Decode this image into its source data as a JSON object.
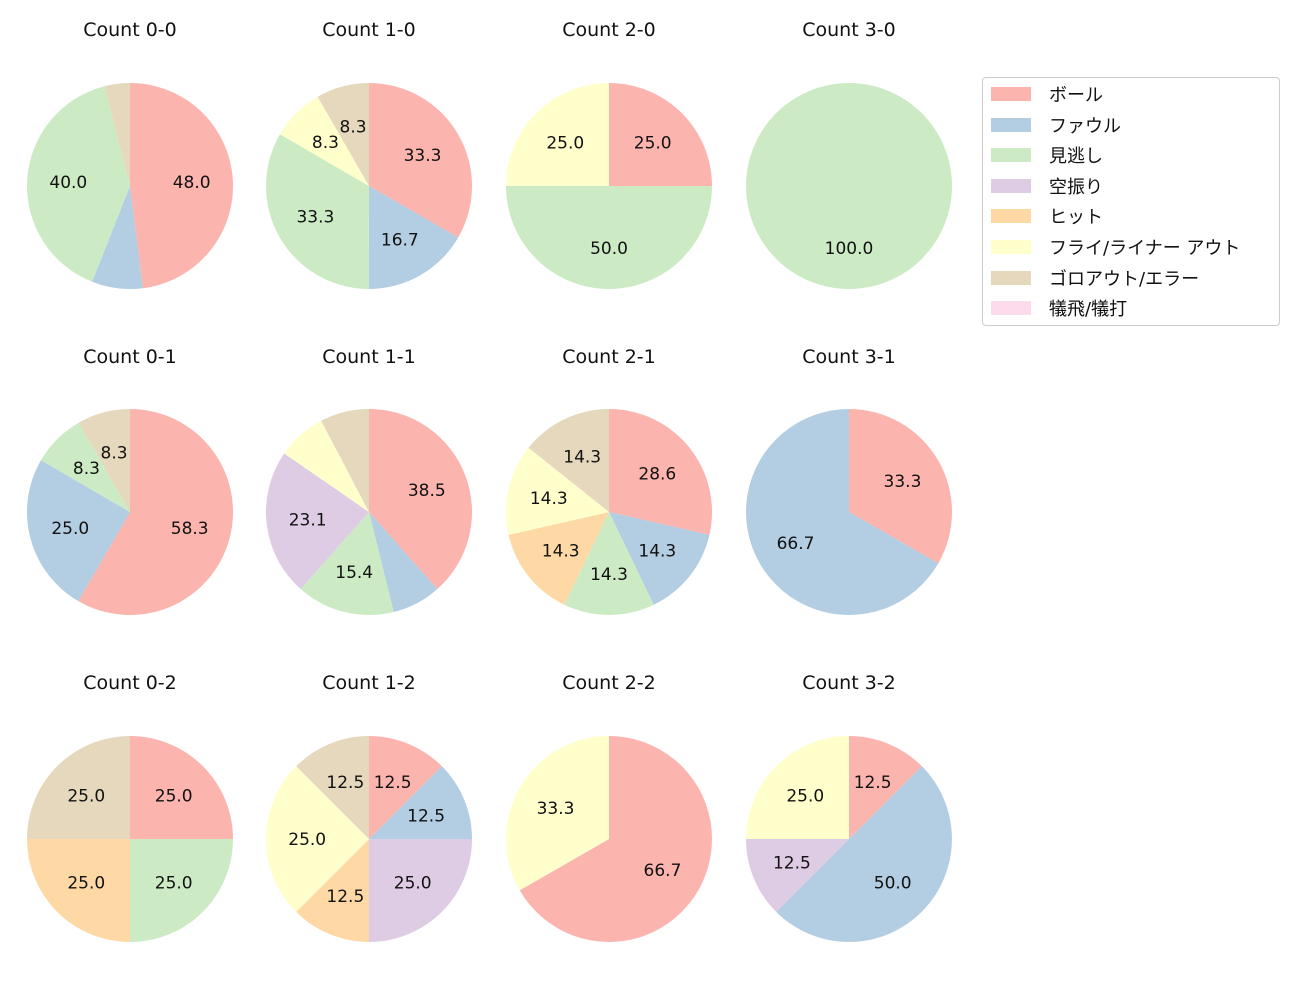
{
  "chart_data": {
    "type": "pie",
    "legend_position": "right",
    "legend": [
      "ボール",
      "ファウル",
      "見逃し",
      "空振り",
      "ヒット",
      "フライ/ライナー アウト",
      "ゴロアウト/エラー",
      "犠飛/犠打"
    ],
    "colors": [
      "#fbb4ae",
      "#b3cde3",
      "#ccebc5",
      "#decbe4",
      "#fed9a6",
      "#ffffcc",
      "#e5d8bd",
      "#fddaec"
    ],
    "charts": [
      {
        "title": "Count 0-0",
        "values": [
          48.0,
          8.0,
          40.0,
          0,
          0,
          0,
          4.0,
          0
        ]
      },
      {
        "title": "Count 1-0",
        "values": [
          33.3,
          16.7,
          33.3,
          0,
          0,
          8.3,
          8.3,
          0
        ]
      },
      {
        "title": "Count 2-0",
        "values": [
          25.0,
          0,
          50.0,
          0,
          0,
          25.0,
          0,
          0
        ]
      },
      {
        "title": "Count 3-0",
        "values": [
          0,
          0,
          100.0,
          0,
          0,
          0,
          0,
          0
        ]
      },
      {
        "title": "Count 0-1",
        "values": [
          58.3,
          25.0,
          8.3,
          0,
          0,
          0,
          8.3,
          0
        ]
      },
      {
        "title": "Count 1-1",
        "values": [
          38.5,
          7.7,
          15.4,
          23.1,
          0,
          7.7,
          7.7,
          0
        ]
      },
      {
        "title": "Count 2-1",
        "values": [
          28.6,
          14.3,
          14.3,
          0,
          14.3,
          14.3,
          14.3,
          0
        ]
      },
      {
        "title": "Count 3-1",
        "values": [
          33.3,
          66.7,
          0,
          0,
          0,
          0,
          0,
          0
        ]
      },
      {
        "title": "Count 0-2",
        "values": [
          25.0,
          0,
          25.0,
          0,
          25.0,
          0,
          25.0,
          0
        ]
      },
      {
        "title": "Count 1-2",
        "values": [
          12.5,
          12.5,
          0,
          25.0,
          12.5,
          25.0,
          12.5,
          0
        ]
      },
      {
        "title": "Count 2-2",
        "values": [
          66.7,
          0,
          0,
          0,
          0,
          33.3,
          0,
          0
        ]
      },
      {
        "title": "Count 3-2",
        "values": [
          12.5,
          50.0,
          0,
          12.5,
          0,
          25.0,
          0,
          0
        ]
      }
    ]
  }
}
